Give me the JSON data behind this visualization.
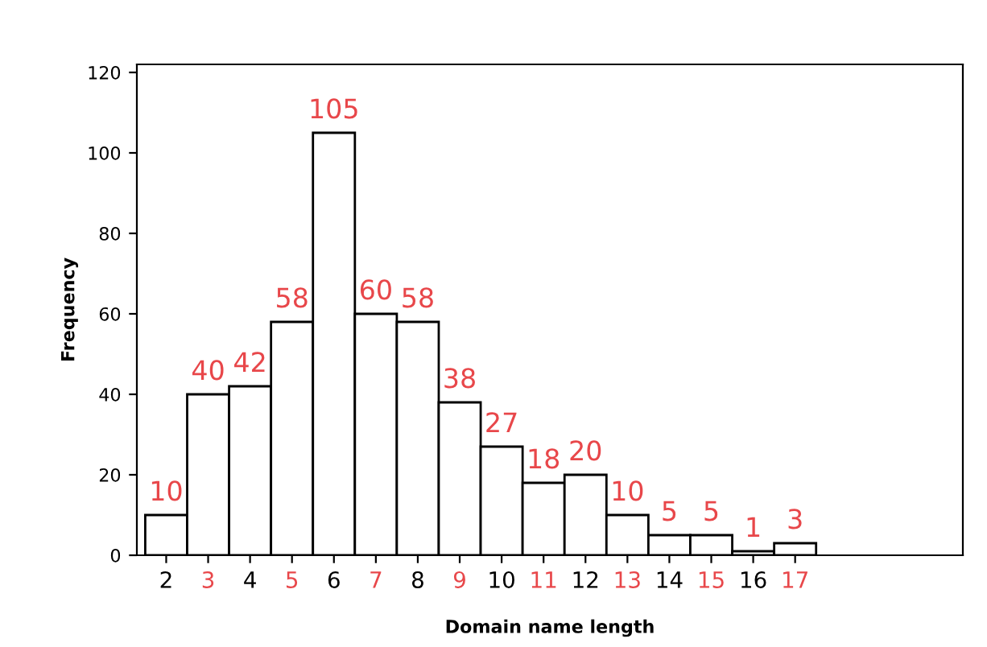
{
  "chart_data": {
    "type": "histogram",
    "xlabel": "Domain name length",
    "ylabel": "Frequency",
    "bins": [
      1.5,
      2.5,
      3.5,
      4.5,
      5.5,
      6.5,
      7.5,
      8.5,
      9.5,
      10.5,
      11.5,
      12.5,
      13.5,
      14.5,
      15.5,
      16.5,
      17.5
    ],
    "values": [
      10,
      40,
      42,
      58,
      105,
      60,
      58,
      38,
      27,
      18,
      20,
      10,
      5,
      5,
      1,
      3
    ],
    "color": "#ffffff",
    "data_labels": true,
    "xlim": [
      1.3,
      21
    ],
    "xticks": [
      2,
      {
        "value": 3,
        "label": "3"
      },
      4,
      {
        "value": 5,
        "label": "5"
      },
      6,
      {
        "value": 7,
        "label": "7"
      },
      8,
      {
        "value": 9,
        "label": "9"
      },
      10,
      {
        "value": 11,
        "label": "11"
      },
      12,
      {
        "value": 13,
        "label": "13"
      },
      14,
      {
        "value": 15,
        "label": "15"
      },
      16,
      {
        "value": 17,
        "label": "17"
      }
    ],
    "ylim": [
      0,
      122
    ],
    "yticks": [
      0,
      20,
      40,
      60,
      80,
      100,
      120
    ],
    "grid": false
  }
}
